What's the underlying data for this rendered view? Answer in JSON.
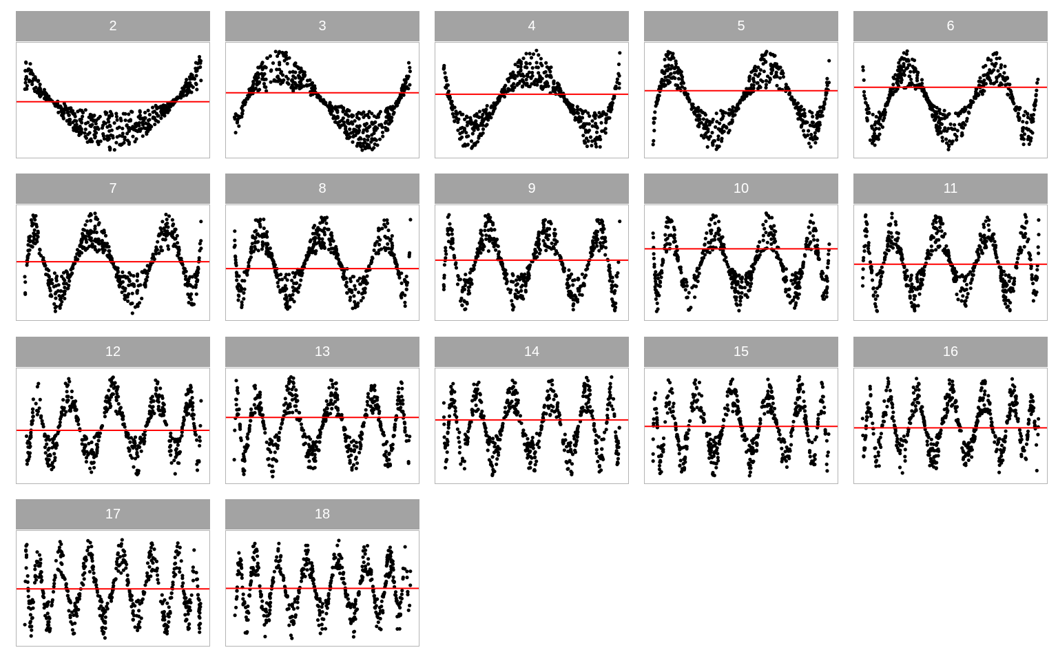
{
  "chart_data": {
    "type": "scatter",
    "layout": "facet_wrap",
    "ncol": 5,
    "title": "",
    "xlabel": "",
    "ylabel": "",
    "grid": false,
    "axes_shown": false,
    "colors": {
      "points": "#000000",
      "reference_line": "#ff0000",
      "strip_background": "#a3a3a3",
      "strip_text": "#ffffff",
      "panel_border": "#b3b3b3"
    },
    "points_per_panel": 500,
    "xlim": [
      -1,
      1
    ],
    "ylim": [
      -1.05,
      1.05
    ],
    "panels": [
      {
        "label": "2",
        "line_y": -0.03
      },
      {
        "label": "3",
        "line_y": 0.15
      },
      {
        "label": "4",
        "line_y": 0.12
      },
      {
        "label": "5",
        "line_y": 0.19
      },
      {
        "label": "6",
        "line_y": 0.26
      },
      {
        "label": "7",
        "line_y": 0.02
      },
      {
        "label": "8",
        "line_y": -0.12
      },
      {
        "label": "9",
        "line_y": 0.05
      },
      {
        "label": "10",
        "line_y": 0.28
      },
      {
        "label": "11",
        "line_y": -0.03
      },
      {
        "label": "12",
        "line_y": -0.09
      },
      {
        "label": "13",
        "line_y": 0.17
      },
      {
        "label": "14",
        "line_y": 0.12
      },
      {
        "label": "15",
        "line_y": -0.01
      },
      {
        "label": "16",
        "line_y": -0.04
      },
      {
        "label": "17",
        "line_y": -0.01
      },
      {
        "label": "18",
        "line_y": 0.0
      }
    ]
  }
}
